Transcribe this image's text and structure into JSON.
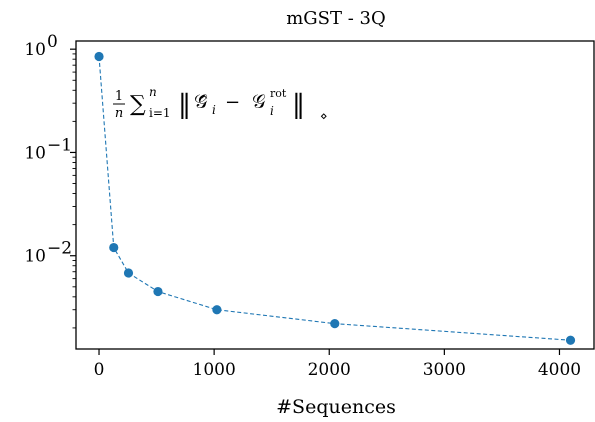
{
  "chart_data": {
    "type": "line",
    "title": "mGST - 3Q",
    "xlabel": "#Sequences",
    "ylabel": "",
    "yscale": "log",
    "xlim": [
      -200,
      4300
    ],
    "ylim": [
      0.00125,
      1.2
    ],
    "x_ticks": [
      0,
      1000,
      2000,
      3000,
      4000
    ],
    "x_tick_labels": [
      "0",
      "1000",
      "2000",
      "3000",
      "4000"
    ],
    "y_ticks": [
      1,
      0.1,
      0.01
    ],
    "y_tick_labels": [
      "10",
      "10",
      "10"
    ],
    "y_tick_exponents": [
      "0",
      "−1",
      "−2"
    ],
    "grid": false,
    "annotation": {
      "frac_num": "1",
      "frac_den": "n",
      "sum": "∑",
      "sum_sup": "n",
      "sum_sub": "i=1",
      "norm_open": "‖",
      "g_hat": "𝒢̂",
      "sub_i": "i",
      "minus": "−",
      "g_rot": "𝒢",
      "rot_sup": "rot",
      "norm_close": "‖",
      "diamond": "⋄"
    },
    "series": [
      {
        "color": "#1f77b4",
        "linestyle": "dashed",
        "marker": "circle",
        "x": [
          0,
          128,
          256,
          512,
          1024,
          2048,
          4096
        ],
        "y": [
          0.85,
          0.012,
          0.0068,
          0.0045,
          0.003,
          0.0022,
          0.00152
        ]
      }
    ]
  }
}
